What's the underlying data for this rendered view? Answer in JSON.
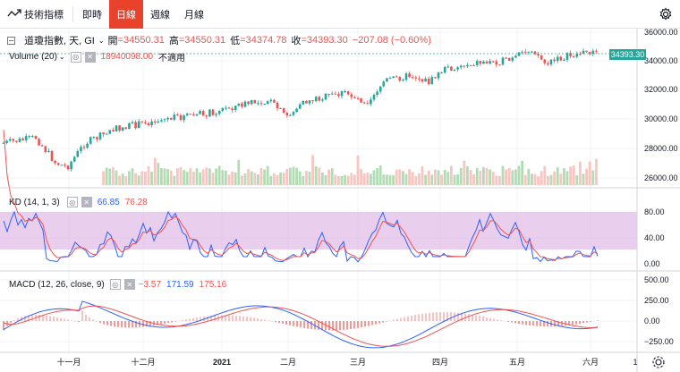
{
  "toolbar": {
    "indicators_label": "技術指標",
    "intervals": [
      {
        "label": "即時",
        "active": false
      },
      {
        "label": "日線",
        "active": true
      },
      {
        "label": "週線",
        "active": false
      },
      {
        "label": "月線",
        "active": false
      }
    ]
  },
  "main_legend": {
    "symbol": "道瓊指數, 天, GI",
    "open_label": "開",
    "open": "=34550.31",
    "high_label": "高",
    "high": "=34550.31",
    "low_label": "低",
    "low": "=34374.78",
    "close_label": "收",
    "close": "=34393.30",
    "change": "−207.08 (−0.60%)"
  },
  "volume_legend": {
    "label": "Volume (20)",
    "value": "18940098.00",
    "na": "不適用"
  },
  "kd_legend": {
    "label": "KD (14, 1, 3)",
    "k": "66.85",
    "d": "76.28"
  },
  "macd_legend": {
    "label": "MACD (12, 26, close, 9)",
    "hist": "−3.57",
    "macd": "171.59",
    "signal": "175.16"
  },
  "price_axis": [
    "36000.00",
    "34000.00",
    "32000.00",
    "30000.00",
    "28000.00",
    "26000.00"
  ],
  "last_price_tag": "34393.30",
  "kd_axis": [
    "80.00",
    "40.00",
    "0.00"
  ],
  "macd_axis": [
    "500.00",
    "250.00",
    "0.00",
    "−250.00"
  ],
  "time_axis": [
    "十一月",
    "十二月",
    "2021",
    "二月",
    "三月",
    "四月",
    "五月",
    "六月",
    "1"
  ],
  "colors": {
    "up": "#26a69a",
    "down": "#ef5350",
    "accent": "#e8412c",
    "k": "#2962ff",
    "d": "#ef5350",
    "kd_band": "#e1bee7"
  }
}
